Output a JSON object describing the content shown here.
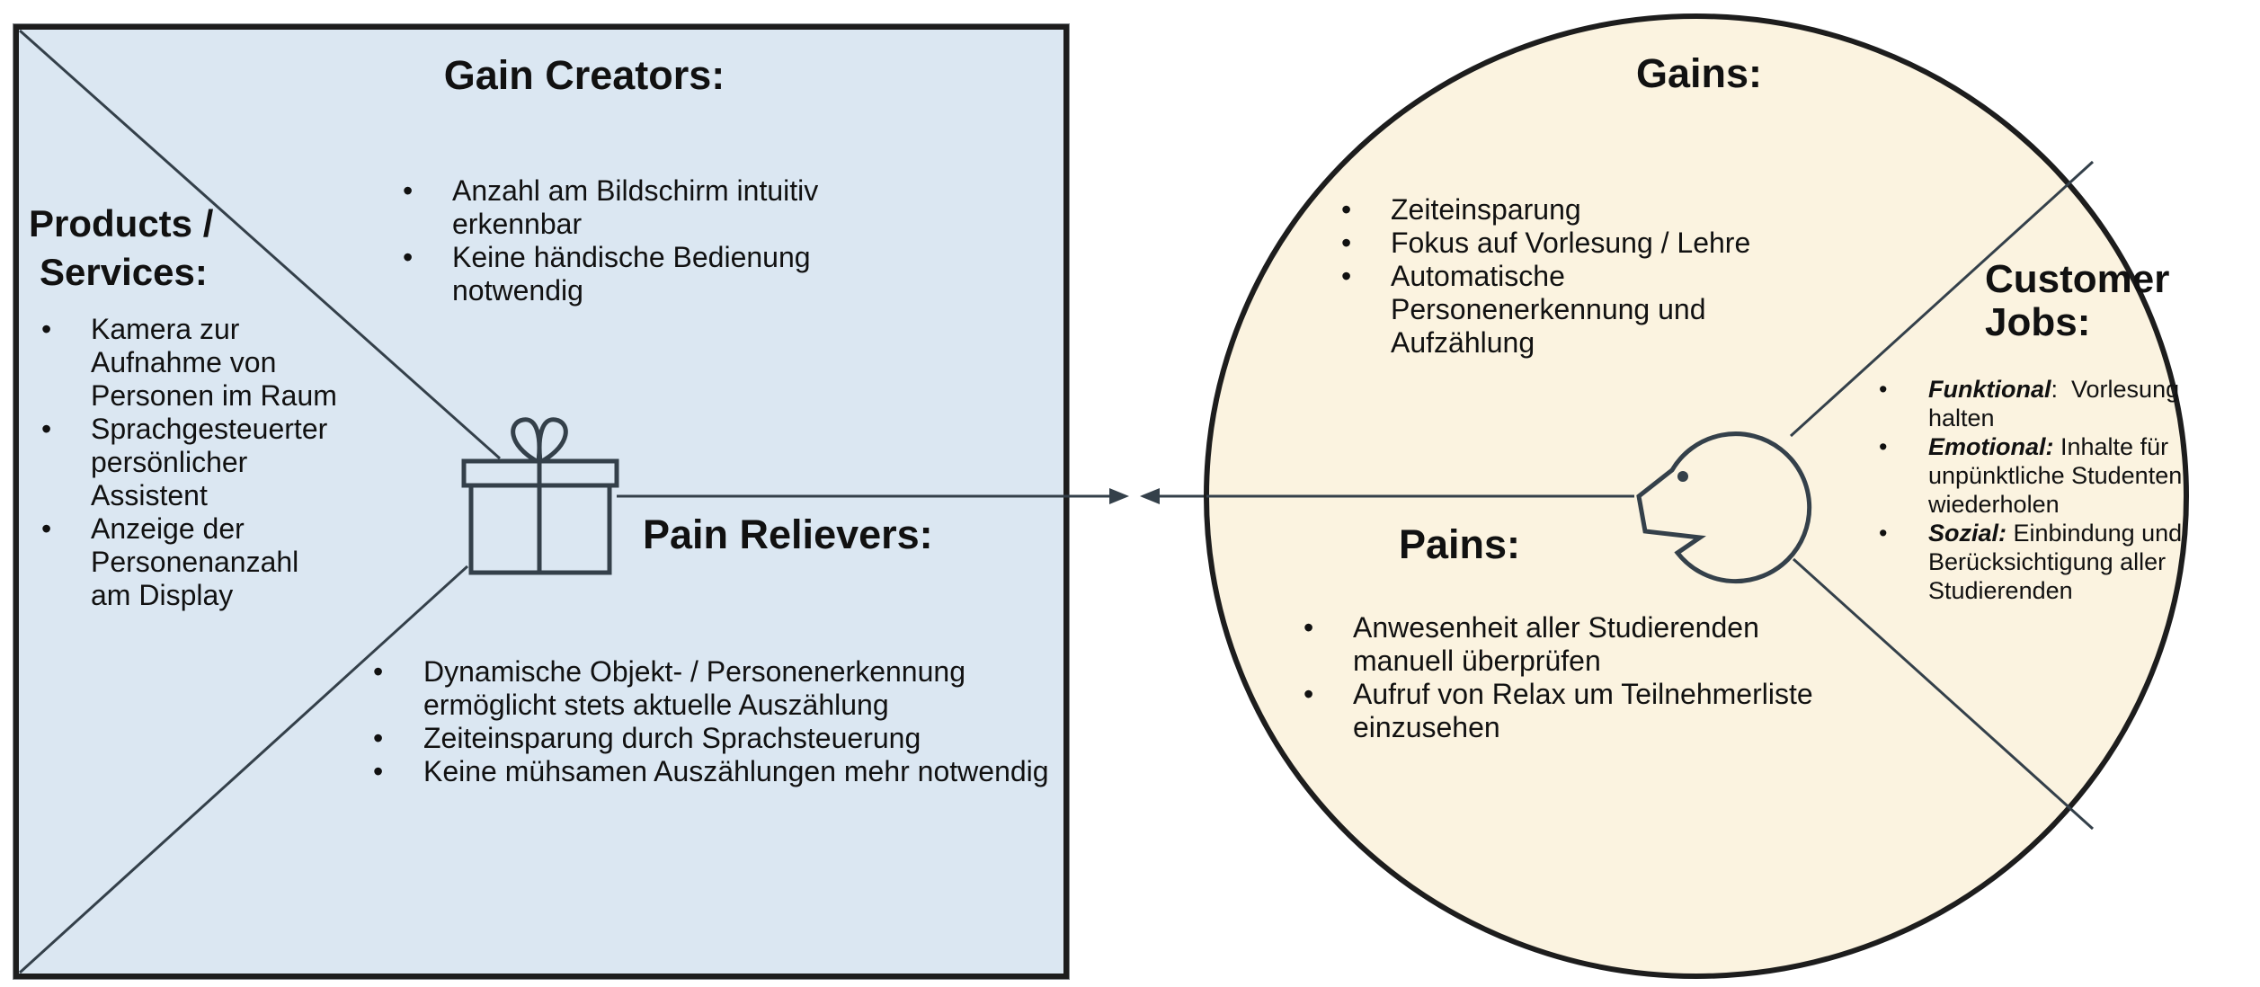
{
  "value_map": {
    "gain_creators": {
      "title": "Gain Creators:",
      "items": [
        "Anzahl am Bildschirm intuitiv erkennbar",
        "Keine händische Bedienung notwendig"
      ]
    },
    "products_services": {
      "title_line1": "Products /",
      "title_line2": "Services:",
      "items": [
        "Kamera zur Aufnahme von Personen im Raum",
        "Sprachgesteuerter persönlicher Assistent",
        "Anzeige der Personenanzahl am Display"
      ]
    },
    "pain_relievers": {
      "title": "Pain Relievers:",
      "items": [
        "Dynamische Objekt- / Personenerkennung ermöglicht stets aktuelle Auszählung",
        "Zeiteinsparung durch Sprachsteuerung",
        "Keine mühsamen Auszählungen mehr notwendig"
      ]
    },
    "icon": "gift-icon"
  },
  "customer_profile": {
    "gains": {
      "title": "Gains:",
      "items": [
        "Zeiteinsparung",
        "Fokus auf Vorlesung / Lehre",
        "Automatische Personenerkennung und Aufzählung"
      ]
    },
    "pains": {
      "title": "Pains:",
      "items": [
        "Anwesenheit aller Studierenden manuell überprüfen",
        "Aufruf von Relax um Teilnehmerliste einzusehen"
      ]
    },
    "customer_jobs": {
      "title_line1": "Customer",
      "title_line2": "Jobs:",
      "items": [
        {
          "keyword": "Funktional",
          "suffix": ":",
          "text": "  Vorlesung halten"
        },
        {
          "keyword": "Emotional:",
          "suffix": "",
          "text": " Inhalte für unpünktliche Studenten wiederholen"
        },
        {
          "keyword": "Sozial:",
          "suffix": "",
          "text": " Einbindung und Berücksichtigung aller Studierenden"
        }
      ]
    },
    "icon": "face-icon"
  },
  "colors": {
    "value_map_fill": "#dbe7f2",
    "customer_profile_fill": "#fbf3e0",
    "lines": "#34404a"
  }
}
